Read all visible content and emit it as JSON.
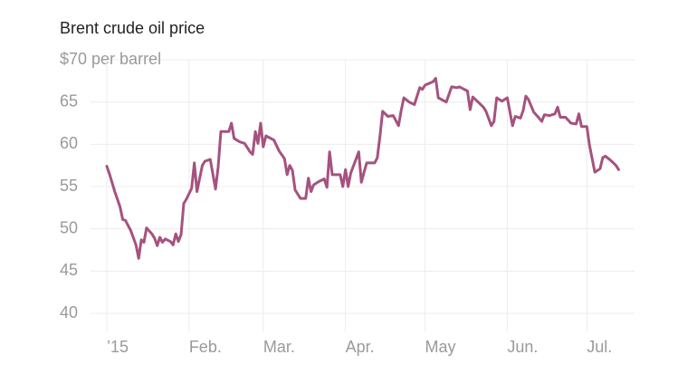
{
  "chart_data": {
    "type": "line",
    "title": "Brent crude oil price",
    "x": [
      0,
      1,
      3,
      5,
      6,
      7,
      9,
      11,
      12,
      13,
      14,
      15,
      17,
      18,
      19,
      20,
      21,
      22,
      24,
      25,
      26,
      27,
      28,
      29,
      30,
      32,
      33,
      34,
      36,
      37,
      39,
      41,
      42,
      43,
      45,
      46,
      47,
      48,
      50,
      52,
      54,
      55,
      56,
      57,
      58,
      59,
      60,
      63,
      65,
      67,
      68,
      69,
      70,
      71,
      73,
      75,
      76,
      77,
      78,
      80,
      82,
      83,
      84,
      85,
      88,
      89,
      90,
      91,
      92,
      95,
      96,
      97,
      98,
      101,
      102,
      103,
      104,
      106,
      108,
      110,
      111,
      112,
      114,
      116,
      118,
      119,
      120,
      123,
      124,
      125,
      128,
      130,
      132,
      133,
      136,
      137,
      138,
      140,
      142,
      143,
      145,
      146,
      147,
      149,
      151,
      153,
      154,
      156,
      157,
      158,
      159,
      161,
      163,
      164,
      165,
      167,
      169,
      170,
      171,
      173,
      175,
      177,
      178,
      179,
      181,
      182,
      184,
      186,
      187,
      188,
      190,
      192,
      193
    ],
    "values": [
      57.4,
      56.5,
      54.4,
      52.6,
      51.1,
      51.0,
      49.8,
      48.1,
      46.5,
      48.7,
      48.4,
      50.1,
      49.4,
      48.9,
      48.0,
      49.0,
      48.4,
      48.8,
      48.5,
      48.1,
      49.4,
      48.5,
      49.3,
      53.0,
      53.5,
      54.8,
      57.8,
      54.4,
      57.5,
      58.0,
      58.2,
      54.7,
      57.3,
      61.5,
      61.5,
      61.5,
      62.5,
      60.7,
      60.3,
      60.1,
      59.1,
      58.8,
      61.5,
      60.1,
      62.5,
      59.7,
      61.0,
      60.5,
      59.2,
      58.3,
      56.4,
      57.5,
      56.9,
      54.6,
      53.6,
      53.6,
      56.0,
      54.4,
      55.2,
      55.6,
      55.9,
      54.9,
      59.1,
      56.4,
      56.4,
      55.0,
      57.0,
      55.0,
      56.6,
      59.1,
      55.5,
      56.7,
      57.8,
      57.8,
      58.4,
      61.0,
      63.9,
      63.3,
      63.4,
      62.2,
      64.0,
      65.5,
      65.0,
      64.7,
      66.7,
      66.5,
      67.0,
      67.4,
      67.8,
      65.5,
      65.0,
      66.8,
      66.7,
      66.8,
      66.3,
      64.1,
      65.6,
      65.0,
      64.4,
      63.9,
      62.2,
      62.7,
      65.5,
      65.1,
      65.5,
      62.2,
      63.3,
      63.1,
      64.0,
      65.7,
      65.3,
      63.8,
      63.1,
      62.7,
      63.5,
      63.4,
      63.6,
      64.4,
      63.2,
      63.2,
      62.5,
      62.4,
      63.6,
      62.1,
      62.1,
      59.9,
      56.7,
      57.1,
      58.4,
      58.6,
      58.1,
      57.5,
      57.0
    ],
    "color": "#a5527f",
    "xlim": [
      0,
      199
    ],
    "xticks": [
      {
        "value": 0,
        "label": "’15"
      },
      {
        "value": 31,
        "label": "Feb."
      },
      {
        "value": 59,
        "label": "Mar."
      },
      {
        "value": 90,
        "label": "Apr."
      },
      {
        "value": 120,
        "label": "May"
      },
      {
        "value": 151,
        "label": "Jun."
      },
      {
        "value": 181,
        "label": "Jul."
      }
    ],
    "ylim": [
      40,
      70
    ],
    "yticks": [
      40,
      45,
      50,
      55,
      60,
      65,
      {
        "value": 70,
        "label": "$70 per barrel"
      }
    ],
    "grid": true
  }
}
